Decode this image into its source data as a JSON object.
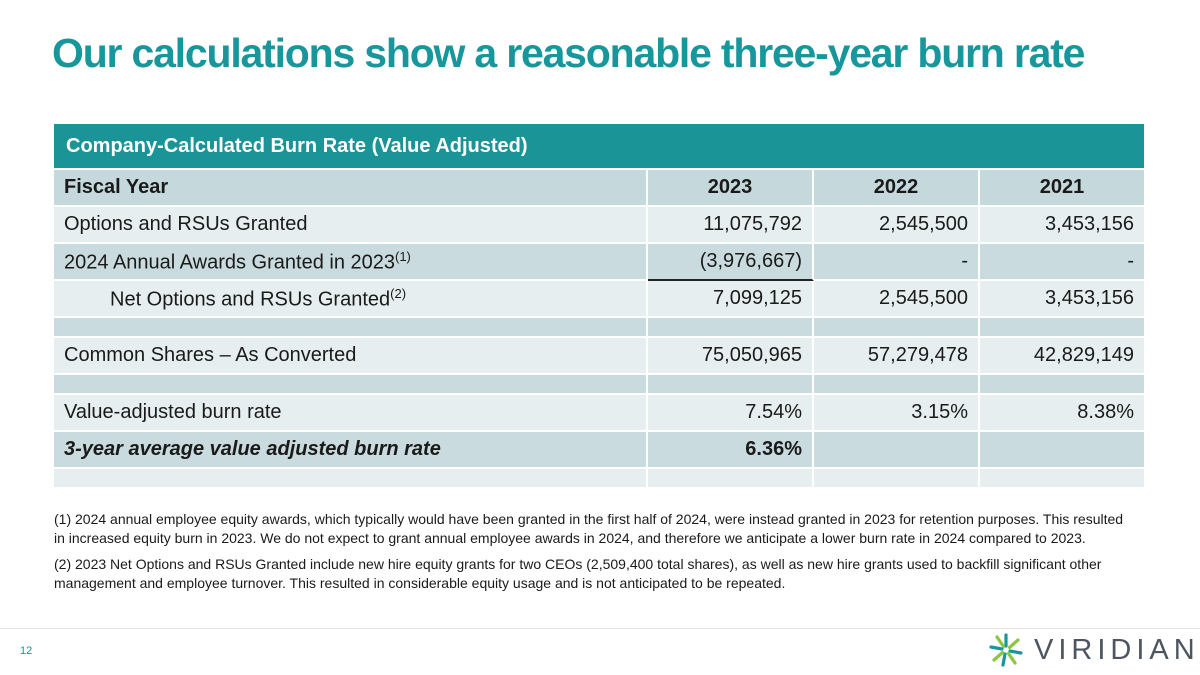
{
  "slide": {
    "title": "Our calculations show a reasonable three-year burn rate",
    "page_number": "12"
  },
  "table": {
    "caption": "Company-Calculated Burn Rate (Value Adjusted)",
    "header": {
      "label": "Fiscal Year",
      "years": [
        "2023",
        "2022",
        "2021"
      ]
    },
    "rows": [
      {
        "label": "Options and RSUs Granted",
        "values": [
          "11,075,792",
          "2,545,500",
          "3,453,156"
        ]
      },
      {
        "label": "2024 Annual Awards Granted in 2023",
        "sup": "(1)",
        "values": [
          "(3,976,667)",
          "-",
          "-"
        ]
      },
      {
        "label": "Net Options and RSUs Granted",
        "sup": "(2)",
        "values": [
          "7,099,125",
          "2,545,500",
          "3,453,156"
        ]
      },
      {
        "label": "Common Shares – As Converted",
        "values": [
          "75,050,965",
          "57,279,478",
          "42,829,149"
        ]
      },
      {
        "label": "Value-adjusted burn rate",
        "values": [
          "7.54%",
          "3.15%",
          "8.38%"
        ]
      },
      {
        "label": "3-year average value adjusted burn rate",
        "values": [
          "6.36%",
          "",
          ""
        ]
      }
    ]
  },
  "footnotes": [
    "(1) 2024 annual employee equity awards, which typically would have been granted in the first half of 2024, were instead granted in 2023 for retention purposes. This resulted in increased equity burn in 2023. We do not expect to grant annual employee awards in 2024, and therefore we anticipate a lower burn rate in 2024 compared to 2023.",
    "(2) 2023 Net Options and RSUs Granted include new hire equity grants for two CEOs (2,509,400 total shares), as well as new hire grants used to backfill significant other management and employee turnover. This resulted in considerable equity usage and is not anticipated to be repeated."
  ],
  "logo": {
    "wordmark": "VIRIDIAN",
    "icon": "viridian-starburst-icon",
    "colors": [
      "#17979b",
      "#8cc63f"
    ]
  }
}
